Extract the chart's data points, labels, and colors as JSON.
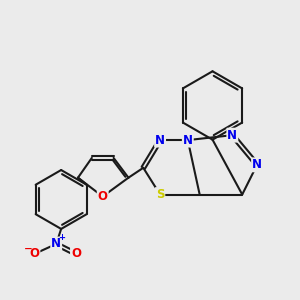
{
  "bg_color": "#ebebeb",
  "bond_color": "#1a1a1a",
  "bond_width": 1.5,
  "atom_colors": {
    "N": "#0000ee",
    "O": "#ee0000",
    "S": "#cccc00",
    "C": "#1a1a1a"
  },
  "fig_size": [
    3.0,
    3.0
  ],
  "dpi": 100
}
